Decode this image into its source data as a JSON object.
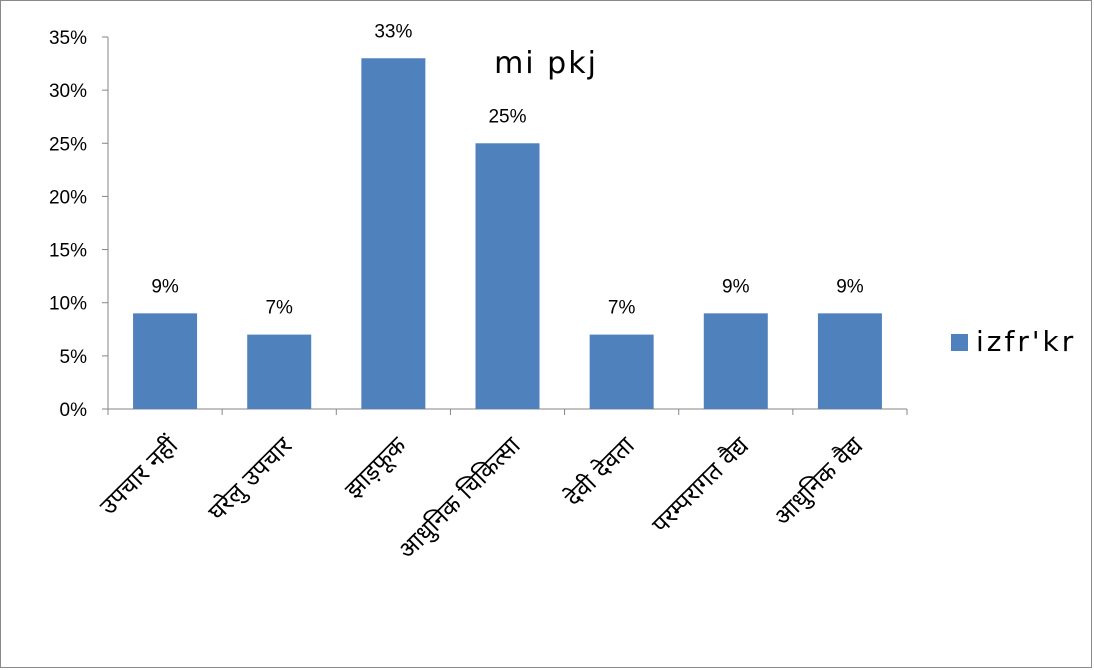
{
  "chart_data": {
    "type": "bar",
    "title": "mi pkj",
    "categories": [
      "उपचार नहीं",
      "घरेलु उपचार",
      "झाड़फूक",
      "आधुनिक चिकित्सा",
      "देवी देवता",
      "परम्परागत वैद्य",
      "आधुनिक वैद्य"
    ],
    "series": [
      {
        "name": "izfr'kr",
        "values": [
          9,
          7,
          33,
          25,
          7,
          9,
          9
        ],
        "labels": [
          "9%",
          "7%",
          "33%",
          "25%",
          "7%",
          "9%",
          "9%"
        ],
        "color": "#4F81BD"
      }
    ],
    "ylim": [
      0,
      35
    ],
    "yticks": [
      0,
      5,
      10,
      15,
      20,
      25,
      30,
      35
    ],
    "ytick_labels": [
      "0%",
      "5%",
      "10%",
      "15%",
      "20%",
      "25%",
      "30%",
      "35%"
    ],
    "xlabel": "",
    "ylabel": "",
    "grid": false,
    "legend_position": "right"
  }
}
